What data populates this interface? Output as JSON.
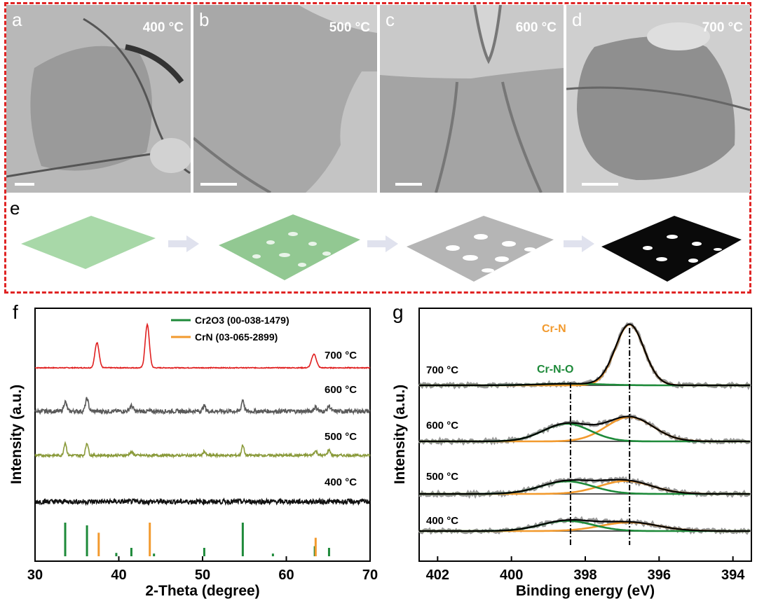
{
  "figure": {
    "panels_tem": [
      {
        "letter": "a",
        "temperature": "400 °C"
      },
      {
        "letter": "b",
        "temperature": "500 °C"
      },
      {
        "letter": "c",
        "temperature": "600 °C"
      },
      {
        "letter": "d",
        "temperature": "700 °C"
      }
    ],
    "panel_e_letter": "e",
    "panel_f_letter": "f",
    "panel_g_letter": "g",
    "colors": {
      "dash_border": "#e02424",
      "cr2o3": "#1e8a3a",
      "crn": "#f29a2e",
      "trace_700": "#e02020",
      "trace_600": "#5a5a5a",
      "trace_500": "#8a9a3a",
      "trace_400": "#111111",
      "sheet_green": "#a8d8a8",
      "sheet_gray": "#b5b5b5",
      "sheet_black": "#0a0a0a"
    }
  },
  "chart_data": [
    {
      "type": "line",
      "panel": "f",
      "xlabel": "2-Theta (degree)",
      "ylabel": "Intensity (a.u.)",
      "xlim": [
        30,
        70
      ],
      "xticks": [
        "30",
        "40",
        "50",
        "60",
        "70"
      ],
      "legend": [
        {
          "label": "Cr2O3 (00-038-1479)",
          "color": "#1e8a3a"
        },
        {
          "label": "CrN (03-065-2899)",
          "color": "#f29a2e"
        }
      ],
      "series": [
        {
          "name": "700 °C",
          "color": "#e02020",
          "baseline": 3,
          "noise": 0.05,
          "peaks": [
            [
              37.4,
              2.4,
              0.35
            ],
            [
              43.4,
              4.1,
              0.35
            ],
            [
              63.3,
              1.3,
              0.4
            ]
          ]
        },
        {
          "name": "600 °C",
          "color": "#5a5a5a",
          "baseline": 2,
          "noise": 0.25,
          "peaks": [
            [
              33.6,
              0.9,
              0.25
            ],
            [
              36.2,
              1.2,
              0.25
            ],
            [
              41.5,
              0.5,
              0.3
            ],
            [
              50.2,
              0.5,
              0.25
            ],
            [
              54.8,
              1.1,
              0.22
            ],
            [
              63.5,
              0.4,
              0.3
            ],
            [
              65.1,
              0.5,
              0.25
            ]
          ]
        },
        {
          "name": "500 °C",
          "color": "#8a9a3a",
          "baseline": 1,
          "noise": 0.15,
          "peaks": [
            [
              33.6,
              1.2,
              0.22
            ],
            [
              36.2,
              1.2,
              0.22
            ],
            [
              41.5,
              0.3,
              0.3
            ],
            [
              50.2,
              0.4,
              0.2
            ],
            [
              54.8,
              1.0,
              0.2
            ],
            [
              63.5,
              0.4,
              0.3
            ],
            [
              65.1,
              0.5,
              0.25
            ]
          ]
        },
        {
          "name": "400 °C",
          "color": "#111111",
          "baseline": 0,
          "noise": 0.3,
          "peaks": []
        }
      ],
      "reference_lines": {
        "Cr2O3": [
          [
            33.6,
            1.0
          ],
          [
            36.2,
            0.92
          ],
          [
            39.7,
            0.1
          ],
          [
            41.5,
            0.25
          ],
          [
            44.2,
            0.08
          ],
          [
            50.2,
            0.25
          ],
          [
            54.8,
            1.0
          ],
          [
            58.4,
            0.08
          ],
          [
            63.4,
            0.3
          ],
          [
            65.1,
            0.25
          ]
        ],
        "CrN": [
          [
            37.6,
            0.7
          ],
          [
            43.7,
            1.0
          ],
          [
            63.5,
            0.55
          ]
        ]
      }
    },
    {
      "type": "line",
      "panel": "g",
      "xlabel": "Binding energy (eV)",
      "ylabel": "Intensity (a.u.)",
      "xlim": [
        402.5,
        393.5
      ],
      "xticks": [
        "402",
        "400",
        "398",
        "396",
        "394"
      ],
      "reference_x": [
        398.4,
        396.8
      ],
      "annotations": [
        {
          "text": "Cr-N",
          "color": "#f29a2e"
        },
        {
          "text": "Cr-N-O",
          "color": "#1e8a3a"
        }
      ],
      "series": [
        {
          "name": "700 °C",
          "offset": 3,
          "crn": [
            396.8,
            1.55,
            0.55
          ],
          "crno": [
            398.4,
            0.04,
            1.2
          ]
        },
        {
          "name": "600 °C",
          "offset": 2,
          "crn": [
            396.8,
            0.62,
            0.9
          ],
          "crno": [
            398.5,
            0.45,
            0.9
          ]
        },
        {
          "name": "500 °C",
          "offset": 1,
          "crn": [
            396.9,
            0.33,
            1.0
          ],
          "crno": [
            398.5,
            0.32,
            1.0
          ]
        },
        {
          "name": "400 °C",
          "offset": 0,
          "crn": [
            396.8,
            0.22,
            1.1
          ],
          "crno": [
            398.5,
            0.26,
            1.0
          ]
        }
      ]
    }
  ]
}
